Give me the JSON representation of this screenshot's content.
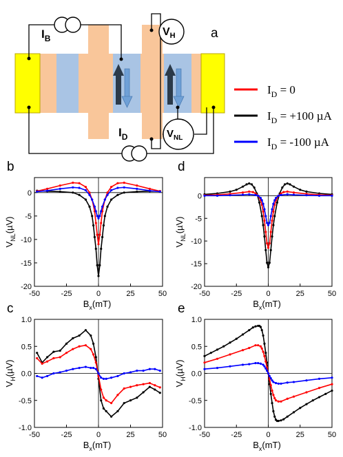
{
  "panels": {
    "a": {
      "letter": "a",
      "labels": {
        "ib": "I",
        "ib_sub": "B",
        "id": "I",
        "id_sub": "D",
        "vh": "V",
        "vh_sub": "H",
        "vnl": "V",
        "vnl_sub": "NL"
      }
    },
    "b": {
      "letter": "b"
    },
    "c": {
      "letter": "c"
    },
    "d": {
      "letter": "d"
    },
    "e": {
      "letter": "e"
    }
  },
  "legend": [
    {
      "prefix": "I",
      "sub": "D",
      "text": " = 0",
      "color": "#ff0000"
    },
    {
      "prefix": "I",
      "sub": "D",
      "text": " = +100 µA",
      "color": "#000000"
    },
    {
      "prefix": "I",
      "sub": "D",
      "text": " = -100 µA",
      "color": "#0000ff"
    }
  ],
  "colors": {
    "contact": "#ffff00",
    "contact_edge": "#b8a600",
    "channel": "#f9c69a",
    "ferro": "#a9c4e4"
  },
  "chart_data": [
    {
      "panel": "b",
      "type": "line",
      "xlabel_main": "B",
      "xlabel_sub": "x",
      "xlabel_unit": "(mT)",
      "ylabel_main": "V",
      "ylabel_sub": "NL",
      "ylabel_unit": "(µV)",
      "xlim": [
        -50,
        50
      ],
      "ylim": [
        -20,
        3.2
      ],
      "xticks": [
        -50,
        -25,
        0,
        25,
        50
      ],
      "yticks": [
        -20,
        -15,
        -10,
        -5,
        0
      ],
      "xtick_labels": [
        "-50",
        "-25",
        "0",
        "25",
        "50"
      ],
      "ytick_labels": [
        "-20",
        "-15",
        "-10",
        "-5",
        "0"
      ],
      "series": [
        {
          "color": "#000000",
          "x": [
            -48,
            -40,
            -30,
            -20,
            -15,
            -10,
            -7,
            -5,
            -4,
            -3,
            -2,
            -1,
            0,
            1,
            2,
            3,
            4,
            5,
            7,
            10,
            15,
            20,
            30,
            40,
            48
          ],
          "y": [
            0.4,
            0.3,
            0.2,
            0,
            -0.5,
            -1.5,
            -3,
            -5,
            -7,
            -9.5,
            -12,
            -15.5,
            -17.8,
            -15.5,
            -12,
            -9.5,
            -7,
            -5,
            -3,
            -1.5,
            -0.5,
            0,
            0.2,
            0.3,
            0.3
          ]
        },
        {
          "color": "#ff0000",
          "x": [
            -48,
            -40,
            -30,
            -20,
            -15,
            -10,
            -7,
            -5,
            -3,
            -2,
            -1,
            0,
            1,
            2,
            3,
            5,
            7,
            10,
            15,
            20,
            30,
            40,
            48
          ],
          "y": [
            0.3,
            0.8,
            1.5,
            2.1,
            2.0,
            1.2,
            0,
            -1.5,
            -4,
            -6.5,
            -9,
            -11,
            -9,
            -6.5,
            -4,
            -1.5,
            0,
            1.2,
            2.0,
            2.1,
            1.5,
            0.8,
            0.3
          ]
        },
        {
          "color": "#0000ff",
          "x": [
            -48,
            -40,
            -30,
            -20,
            -15,
            -10,
            -7,
            -5,
            -3,
            -2,
            -1,
            0,
            1,
            2,
            3,
            5,
            7,
            10,
            15,
            20,
            30,
            40,
            48
          ],
          "y": [
            0.2,
            0.4,
            0.8,
            1.1,
            1.0,
            0.5,
            -0.5,
            -1.5,
            -3,
            -4,
            -5,
            -5.5,
            -5,
            -4,
            -3,
            -1.5,
            -0.5,
            0.5,
            1.0,
            1.1,
            0.8,
            0.4,
            0.2
          ]
        }
      ]
    },
    {
      "panel": "d",
      "type": "line",
      "xlabel_main": "B",
      "xlabel_sub": "x",
      "xlabel_unit": "(mT)",
      "ylabel_main": "V",
      "ylabel_sub": "NL",
      "ylabel_unit": "(µV)",
      "xlim": [
        -50,
        50
      ],
      "ylim": [
        -20,
        4
      ],
      "xticks": [
        -50,
        -25,
        0,
        25,
        50
      ],
      "yticks": [
        -20,
        -15,
        -10,
        -5,
        0
      ],
      "xtick_labels": [
        "-50",
        "-25",
        "0",
        "25",
        "50"
      ],
      "ytick_labels": [
        "-20",
        "-15",
        "-10",
        "-5",
        "0"
      ],
      "series": [
        {
          "color": "#000000",
          "x": [
            -50,
            -40,
            -30,
            -25,
            -20,
            -17,
            -15,
            -13,
            -11,
            -9,
            -7,
            -5,
            -4,
            -3,
            -2,
            -1,
            0,
            1,
            2,
            3,
            4,
            5,
            7,
            9,
            11,
            13,
            15,
            17,
            20,
            25,
            30,
            40,
            50
          ],
          "y": [
            0.3,
            0.5,
            0.9,
            1.3,
            2.0,
            2.5,
            2.7,
            2.5,
            1.8,
            0.5,
            -1.5,
            -4.5,
            -6.5,
            -9,
            -12,
            -14.8,
            -15.8,
            -14.8,
            -12,
            -9,
            -6.5,
            -4.5,
            -1.5,
            0.5,
            1.8,
            2.5,
            2.7,
            2.5,
            2.0,
            1.3,
            0.9,
            0.5,
            0.3
          ]
        },
        {
          "color": "#ff0000",
          "x": [
            -50,
            -40,
            -30,
            -20,
            -15,
            -12,
            -10,
            -8,
            -6,
            -5,
            -4,
            -3,
            -2,
            -1,
            0,
            1,
            2,
            3,
            4,
            5,
            6,
            8,
            10,
            12,
            15,
            20,
            30,
            40,
            50
          ],
          "y": [
            0.1,
            0.2,
            0.4,
            0.7,
            0.9,
            0.8,
            0.5,
            0,
            -1,
            -2,
            -3.5,
            -5.5,
            -8,
            -10.5,
            -11.5,
            -10.5,
            -8,
            -5.5,
            -3.5,
            -2,
            -1,
            0,
            0.5,
            0.8,
            0.9,
            0.7,
            0.4,
            0.2,
            0.1
          ]
        },
        {
          "color": "#0000ff",
          "x": [
            -50,
            -40,
            -30,
            -20,
            -15,
            -10,
            -8,
            -6,
            -5,
            -4,
            -3,
            -2,
            -1,
            0,
            1,
            2,
            3,
            4,
            5,
            6,
            8,
            10,
            15,
            20,
            30,
            40,
            50
          ],
          "y": [
            0,
            0,
            0.1,
            0.2,
            0.3,
            0.15,
            0,
            -0.5,
            -1,
            -1.8,
            -3,
            -4.5,
            -6,
            -6.5,
            -6,
            -4.5,
            -3,
            -1.8,
            -1,
            -0.5,
            0,
            0.15,
            0.3,
            0.2,
            0.1,
            0,
            0
          ]
        }
      ]
    },
    {
      "panel": "c",
      "type": "line",
      "xlabel_main": "B",
      "xlabel_sub": "x",
      "xlabel_unit": "(mT)",
      "ylabel_main": "V",
      "ylabel_sub": "H",
      "ylabel_unit": "(µV)",
      "xlim": [
        -50,
        50
      ],
      "ylim": [
        -1.0,
        1.0
      ],
      "xticks": [
        -50,
        -25,
        0,
        25,
        50
      ],
      "yticks": [
        -1.0,
        -0.5,
        0.0,
        0.5,
        1.0
      ],
      "xtick_labels": [
        "-50",
        "-25",
        "0",
        "25",
        "50"
      ],
      "ytick_labels": [
        "-1.0",
        "-0.5",
        "0.0",
        "0.5",
        "1.0"
      ],
      "series": [
        {
          "color": "#000000",
          "x": [
            -48,
            -44,
            -40,
            -35,
            -30,
            -25,
            -20,
            -15,
            -10,
            -6,
            -4,
            -2,
            0,
            2,
            4,
            6,
            10,
            15,
            20,
            25,
            30,
            35,
            40,
            44,
            48
          ],
          "y": [
            0.38,
            0.2,
            0.3,
            0.4,
            0.42,
            0.55,
            0.65,
            0.7,
            0.8,
            0.7,
            0.55,
            0.3,
            -0.1,
            -0.5,
            -0.65,
            -0.7,
            -0.8,
            -0.7,
            -0.55,
            -0.5,
            -0.45,
            -0.35,
            -0.25,
            -0.3,
            -0.36
          ]
        },
        {
          "color": "#ff0000",
          "x": [
            -48,
            -44,
            -40,
            -35,
            -30,
            -25,
            -20,
            -15,
            -10,
            -6,
            -4,
            -2,
            0,
            2,
            4,
            6,
            10,
            15,
            20,
            25,
            30,
            35,
            40,
            44,
            48
          ],
          "y": [
            0.28,
            0.18,
            0.22,
            0.28,
            0.3,
            0.38,
            0.45,
            0.5,
            0.52,
            0.45,
            0.35,
            0.2,
            -0.05,
            -0.3,
            -0.45,
            -0.5,
            -0.55,
            -0.4,
            -0.28,
            -0.25,
            -0.22,
            -0.2,
            -0.18,
            -0.22,
            -0.26
          ]
        },
        {
          "color": "#0000ff",
          "x": [
            -48,
            -44,
            -40,
            -35,
            -30,
            -25,
            -20,
            -15,
            -10,
            -6,
            -4,
            -2,
            0,
            2,
            4,
            6,
            10,
            15,
            20,
            25,
            30,
            35,
            40,
            44,
            48
          ],
          "y": [
            -0.05,
            -0.08,
            -0.05,
            0,
            0.02,
            0.05,
            0.08,
            0.1,
            0.12,
            0.1,
            0.1,
            0.08,
            0,
            -0.08,
            -0.1,
            -0.1,
            -0.08,
            -0.05,
            0,
            0.02,
            0.05,
            0.05,
            0.08,
            0.08,
            0.05
          ]
        }
      ]
    },
    {
      "panel": "e",
      "type": "line",
      "xlabel_main": "B",
      "xlabel_sub": "x",
      "xlabel_unit": "(mT)",
      "ylabel_main": "V",
      "ylabel_sub": "H",
      "ylabel_unit": "(µV)",
      "xlim": [
        -50,
        50
      ],
      "ylim": [
        -1.0,
        1.0
      ],
      "xticks": [
        -50,
        -25,
        0,
        25,
        50
      ],
      "yticks": [
        -1.0,
        -0.5,
        0.0,
        0.5,
        1.0
      ],
      "xtick_labels": [
        "-50",
        "-25",
        "0",
        "25",
        "50"
      ],
      "ytick_labels": [
        "-1.0",
        "-0.5",
        "0.0",
        "0.5",
        "1.0"
      ],
      "series": [
        {
          "color": "#000000",
          "x": [
            -50,
            -45,
            -40,
            -35,
            -30,
            -25,
            -20,
            -15,
            -12,
            -10,
            -8,
            -7,
            -6,
            -5,
            -4,
            -3,
            -2,
            -1,
            0,
            1,
            2,
            3,
            4,
            5,
            6,
            7,
            8,
            10,
            12,
            15,
            20,
            25,
            30,
            35,
            40,
            45,
            50
          ],
          "y": [
            0.32,
            0.38,
            0.44,
            0.5,
            0.57,
            0.64,
            0.72,
            0.8,
            0.85,
            0.87,
            0.88,
            0.88,
            0.86,
            0.8,
            0.7,
            0.55,
            0.38,
            0.2,
            0,
            -0.2,
            -0.38,
            -0.55,
            -0.7,
            -0.8,
            -0.86,
            -0.88,
            -0.88,
            -0.87,
            -0.85,
            -0.8,
            -0.72,
            -0.64,
            -0.57,
            -0.5,
            -0.44,
            -0.38,
            -0.32
          ]
        },
        {
          "color": "#ff0000",
          "x": [
            -50,
            -40,
            -30,
            -20,
            -15,
            -10,
            -8,
            -6,
            -5,
            -4,
            -3,
            -2,
            -1,
            0,
            1,
            2,
            3,
            4,
            5,
            6,
            8,
            10,
            15,
            20,
            30,
            40,
            50
          ],
          "y": [
            0.2,
            0.27,
            0.35,
            0.43,
            0.47,
            0.52,
            0.52,
            0.5,
            0.46,
            0.4,
            0.32,
            0.22,
            0.11,
            0,
            -0.11,
            -0.22,
            -0.32,
            -0.4,
            -0.46,
            -0.5,
            -0.52,
            -0.52,
            -0.47,
            -0.43,
            -0.35,
            -0.27,
            -0.2
          ]
        },
        {
          "color": "#0000ff",
          "x": [
            -50,
            -40,
            -30,
            -20,
            -15,
            -10,
            -8,
            -6,
            -4,
            -3,
            -2,
            -1,
            0,
            1,
            2,
            3,
            4,
            6,
            8,
            10,
            15,
            20,
            30,
            40,
            50
          ],
          "y": [
            0.08,
            0.1,
            0.13,
            0.16,
            0.17,
            0.19,
            0.19,
            0.18,
            0.16,
            0.13,
            0.09,
            0.05,
            0,
            -0.05,
            -0.09,
            -0.13,
            -0.16,
            -0.18,
            -0.19,
            -0.19,
            -0.17,
            -0.16,
            -0.13,
            -0.1,
            -0.08
          ]
        }
      ]
    }
  ]
}
